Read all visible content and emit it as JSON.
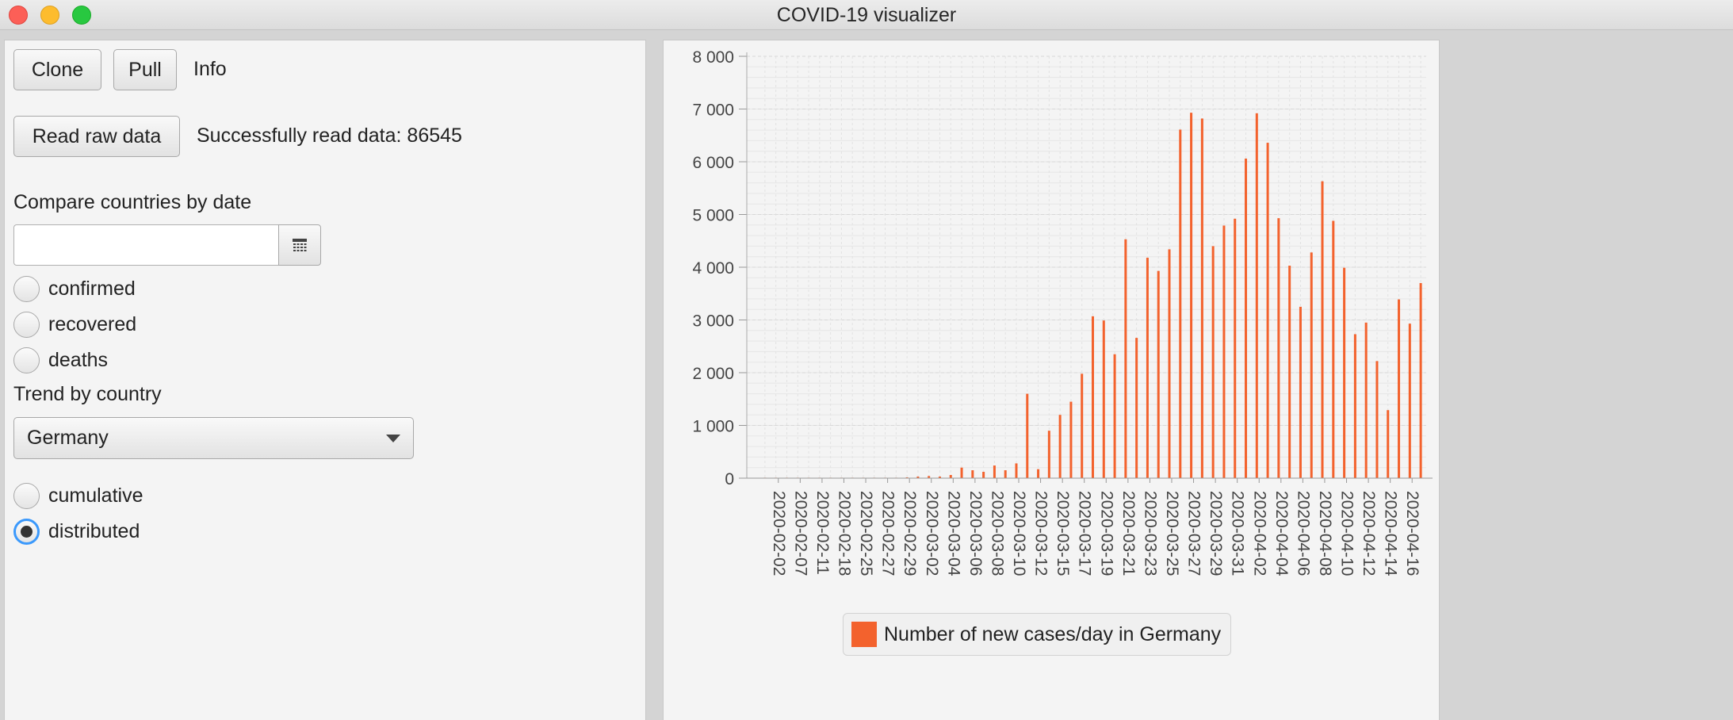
{
  "window": {
    "title": "COVID-19 visualizer"
  },
  "controls": {
    "clone_label": "Clone",
    "pull_label": "Pull",
    "info_text": "Info",
    "read_raw_label": "Read raw data",
    "status_text": "Successfully read data: 86545",
    "compare_heading": "Compare countries by date",
    "date_value": "",
    "compare_options": [
      {
        "label": "confirmed",
        "checked": false
      },
      {
        "label": "recovered",
        "checked": false
      },
      {
        "label": "deaths",
        "checked": false
      }
    ],
    "trend_heading": "Trend by country",
    "country_selected": "Germany",
    "trend_options": [
      {
        "label": "cumulative",
        "checked": false
      },
      {
        "label": "distributed",
        "checked": true
      }
    ]
  },
  "icons": {
    "calendar": "calendar-icon",
    "dropdown": "chevron-down-icon"
  },
  "chart_data": {
    "type": "bar",
    "title": "",
    "xlabel": "",
    "ylabel": "",
    "ylim": [
      0,
      8000
    ],
    "y_ticks": [
      "0",
      "1 000",
      "2 000",
      "3 000",
      "4 000",
      "5 000",
      "6 000",
      "7 000",
      "8 000"
    ],
    "grid": true,
    "legend_position": "bottom",
    "bar_color": "#f3622d",
    "x_tick_labels": [
      "2020-02-02",
      "2020-02-07",
      "2020-02-11",
      "2020-02-18",
      "2020-02-25",
      "2020-02-27",
      "2020-02-29",
      "2020-03-02",
      "2020-03-04",
      "2020-03-06",
      "2020-03-08",
      "2020-03-10",
      "2020-03-12",
      "2020-03-15",
      "2020-03-17",
      "2020-03-19",
      "2020-03-21",
      "2020-03-23",
      "2020-03-25",
      "2020-03-27",
      "2020-03-29",
      "2020-03-31",
      "2020-04-02",
      "2020-04-04",
      "2020-04-06",
      "2020-04-08",
      "2020-04-10",
      "2020-04-12",
      "2020-04-14",
      "2020-04-16"
    ],
    "series": [
      {
        "name": "Number of new cases/day in Germany",
        "values": [
          1,
          0,
          0,
          0,
          0,
          0,
          0,
          0,
          0,
          0,
          0,
          5,
          5,
          15,
          30,
          40,
          30,
          60,
          200,
          150,
          120,
          240,
          150,
          280,
          1600,
          170,
          900,
          1200,
          1450,
          1980,
          3070,
          2990,
          2350,
          4530,
          2660,
          4180,
          3930,
          4340,
          6610,
          6930,
          6820,
          4400,
          4790,
          4920,
          6060,
          6920,
          6360,
          4930,
          4030,
          3250,
          4280,
          5630,
          4880,
          3990,
          2730,
          2950,
          2220,
          1290,
          3390,
          2930,
          3700
        ]
      }
    ]
  }
}
